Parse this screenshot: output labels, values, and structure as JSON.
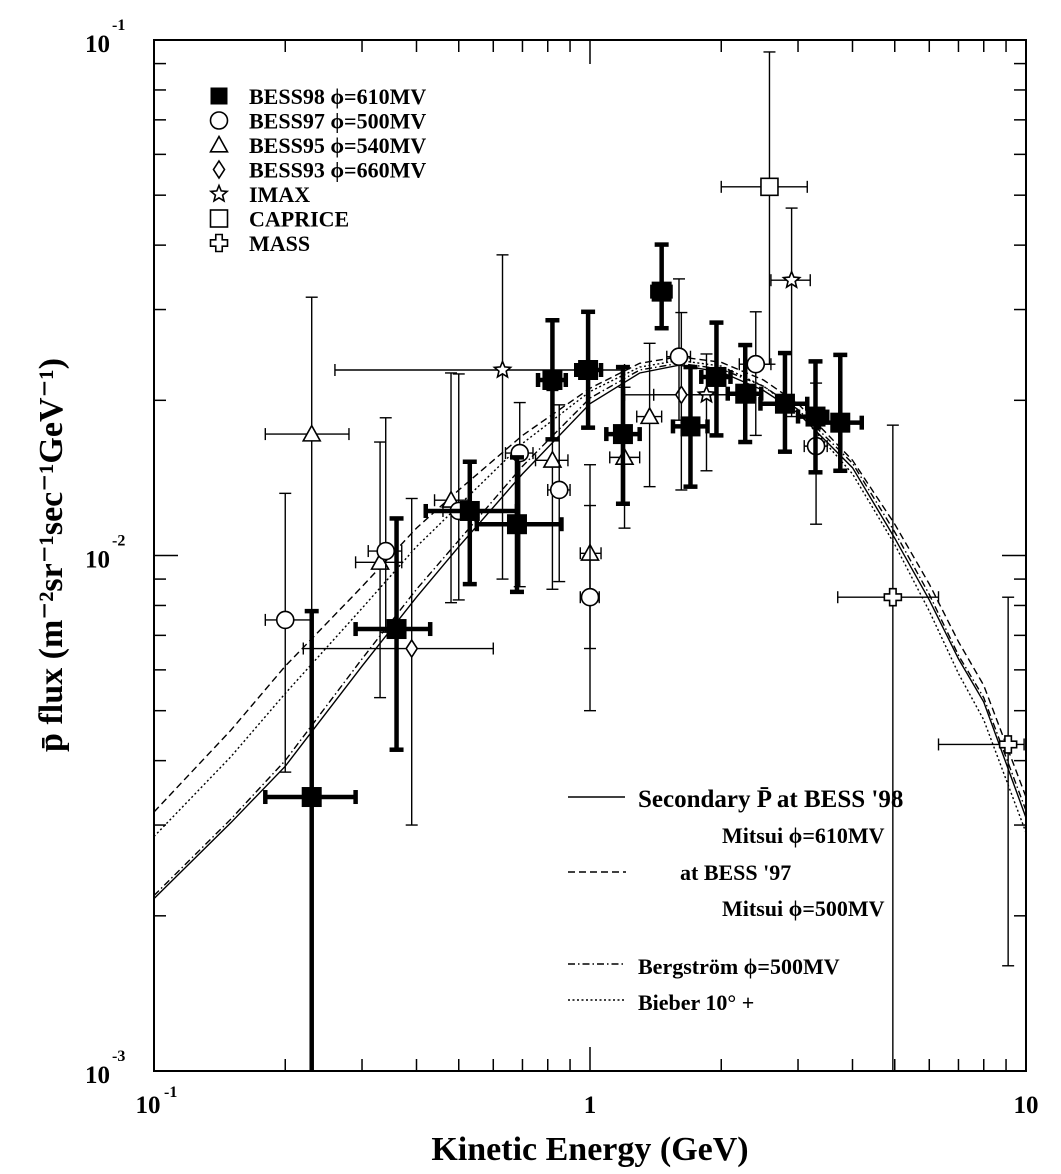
{
  "chart_data": {
    "type": "scatter",
    "xlabel": "Kinetic Energy (GeV)",
    "ylabel": "p̄ flux (m⁻²sr⁻¹sec⁻¹GeV⁻¹)",
    "xscale": "log",
    "yscale": "log",
    "xlim": [
      0.1,
      10
    ],
    "ylim": [
      0.001,
      0.1
    ],
    "x_ticks": [
      {
        "value": 0.1,
        "base": "10",
        "exp": "-1"
      },
      {
        "value": 1,
        "base": "1",
        "exp": ""
      },
      {
        "value": 10,
        "base": "10",
        "exp": ""
      }
    ],
    "y_ticks": [
      {
        "value": 0.1,
        "base": "10",
        "exp": "-1"
      },
      {
        "value": 0.01,
        "base": "10",
        "exp": "-2"
      },
      {
        "value": 0.001,
        "base": "10",
        "exp": "-3"
      }
    ],
    "grid": false,
    "legend_position": "top-left",
    "series": [
      {
        "name": "BESS98 ϕ=610MV",
        "marker": "filled-square",
        "thick": true,
        "points": [
          {
            "x": 0.23,
            "y": 0.0034,
            "xlo": 0.18,
            "xhi": 0.29,
            "ylo": 0.001,
            "yhi": 0.0078
          },
          {
            "x": 0.36,
            "y": 0.0072,
            "xlo": 0.29,
            "xhi": 0.43,
            "ylo": 0.0042,
            "yhi": 0.0118
          },
          {
            "x": 0.53,
            "y": 0.0122,
            "xlo": 0.42,
            "xhi": 0.68,
            "ylo": 0.0088,
            "yhi": 0.0152
          },
          {
            "x": 0.68,
            "y": 0.0115,
            "xlo": 0.55,
            "xhi": 0.86,
            "ylo": 0.0085,
            "yhi": 0.0155
          },
          {
            "x": 0.82,
            "y": 0.0219,
            "xlo": 0.76,
            "xhi": 0.88,
            "ylo": 0.0168,
            "yhi": 0.0286
          },
          {
            "x": 0.99,
            "y": 0.0229,
            "xlo": 0.93,
            "xhi": 1.06,
            "ylo": 0.0177,
            "yhi": 0.0297
          },
          {
            "x": 1.19,
            "y": 0.0172,
            "xlo": 1.09,
            "xhi": 1.3,
            "ylo": 0.0126,
            "yhi": 0.0232
          },
          {
            "x": 1.46,
            "y": 0.0325,
            "xlo": 1.39,
            "xhi": 1.53,
            "ylo": 0.0276,
            "yhi": 0.0401
          },
          {
            "x": 1.7,
            "y": 0.0178,
            "xlo": 1.55,
            "xhi": 1.86,
            "ylo": 0.0136,
            "yhi": 0.0232
          },
          {
            "x": 1.95,
            "y": 0.0222,
            "xlo": 1.8,
            "xhi": 2.1,
            "ylo": 0.0171,
            "yhi": 0.0283
          },
          {
            "x": 2.27,
            "y": 0.0206,
            "xlo": 2.07,
            "xhi": 2.47,
            "ylo": 0.0166,
            "yhi": 0.0256
          },
          {
            "x": 2.8,
            "y": 0.0197,
            "xlo": 2.46,
            "xhi": 3.15,
            "ylo": 0.0159,
            "yhi": 0.0247
          },
          {
            "x": 3.29,
            "y": 0.0186,
            "xlo": 3.0,
            "xhi": 3.5,
            "ylo": 0.0145,
            "yhi": 0.0238
          },
          {
            "x": 3.75,
            "y": 0.0181,
            "xlo": 3.35,
            "xhi": 4.2,
            "ylo": 0.0146,
            "yhi": 0.0245
          }
        ]
      },
      {
        "name": "BESS97 ϕ=500MV",
        "marker": "open-circle",
        "points": [
          {
            "x": 0.2,
            "y": 0.0075,
            "xlo": 0.18,
            "xhi": 0.23,
            "ylo": 0.0038,
            "yhi": 0.0132
          },
          {
            "x": 0.34,
            "y": 0.0102,
            "xlo": 0.31,
            "xhi": 0.37,
            "ylo": 0.0071,
            "yhi": 0.0185
          },
          {
            "x": 0.5,
            "y": 0.0122,
            "xlo": 0.46,
            "xhi": 0.54,
            "ylo": 0.0082,
            "yhi": 0.0225
          },
          {
            "x": 0.69,
            "y": 0.0158,
            "xlo": 0.64,
            "xhi": 0.74,
            "ylo": 0.0087,
            "yhi": 0.0198
          },
          {
            "x": 0.85,
            "y": 0.0134,
            "xlo": 0.8,
            "xhi": 0.9,
            "ylo": 0.0089,
            "yhi": 0.0196
          },
          {
            "x": 1.0,
            "y": 0.0083,
            "xlo": 0.95,
            "xhi": 1.05,
            "ylo": 0.005,
            "yhi": 0.0125
          },
          {
            "x": 1.6,
            "y": 0.0243,
            "xlo": 1.5,
            "xhi": 1.7,
            "ylo": 0.0183,
            "yhi": 0.0344
          },
          {
            "x": 2.4,
            "y": 0.0235,
            "xlo": 2.2,
            "xhi": 2.6,
            "ylo": 0.0171,
            "yhi": 0.0297
          },
          {
            "x": 3.3,
            "y": 0.0163,
            "xlo": 3.1,
            "xhi": 3.5,
            "ylo": 0.0115,
            "yhi": 0.0216
          }
        ]
      },
      {
        "name": "BESS95 ϕ=540MV",
        "marker": "open-triangle",
        "points": [
          {
            "x": 0.23,
            "y": 0.0172,
            "xlo": 0.18,
            "xhi": 0.28,
            "ylo": 0.0034,
            "yhi": 0.0317
          },
          {
            "x": 0.33,
            "y": 0.0097,
            "xlo": 0.29,
            "xhi": 0.37,
            "ylo": 0.0053,
            "yhi": 0.0166
          },
          {
            "x": 0.48,
            "y": 0.0128,
            "xlo": 0.44,
            "xhi": 0.53,
            "ylo": 0.0081,
            "yhi": 0.0226
          },
          {
            "x": 0.82,
            "y": 0.0153,
            "xlo": 0.75,
            "xhi": 0.89,
            "ylo": 0.0086,
            "yhi": 0.0209
          },
          {
            "x": 1.0,
            "y": 0.0101,
            "xlo": 0.95,
            "xhi": 1.06,
            "ylo": 0.0066,
            "yhi": 0.015
          },
          {
            "x": 1.2,
            "y": 0.0155,
            "xlo": 1.11,
            "xhi": 1.3,
            "ylo": 0.0113,
            "yhi": 0.0212
          },
          {
            "x": 1.37,
            "y": 0.0186,
            "xlo": 1.28,
            "xhi": 1.46,
            "ylo": 0.0136,
            "yhi": 0.0258
          }
        ]
      },
      {
        "name": "BESS93 ϕ=660MV",
        "marker": "open-diamond",
        "points": [
          {
            "x": 0.39,
            "y": 0.0066,
            "xlo": 0.22,
            "xhi": 0.6,
            "ylo": 0.003,
            "yhi": 0.0129
          },
          {
            "x": 1.62,
            "y": 0.0205,
            "xlo": 1.2,
            "xhi": 2.3,
            "ylo": 0.0134,
            "yhi": 0.0296
          }
        ]
      },
      {
        "name": "IMAX",
        "marker": "open-star",
        "points": [
          {
            "x": 0.63,
            "y": 0.0229,
            "xlo": 0.26,
            "xhi": 1.2,
            "ylo": 0.009,
            "yhi": 0.0383
          },
          {
            "x": 1.85,
            "y": 0.0205,
            "xlo": 1.4,
            "xhi": 2.4,
            "ylo": 0.0146,
            "yhi": 0.0246
          },
          {
            "x": 2.9,
            "y": 0.0342,
            "xlo": 2.6,
            "xhi": 3.2,
            "ylo": 0.0186,
            "yhi": 0.0472
          }
        ]
      },
      {
        "name": "CAPRICE",
        "marker": "open-square",
        "points": [
          {
            "x": 2.58,
            "y": 0.0519,
            "xlo": 2.0,
            "xhi": 3.15,
            "ylo": 0.0235,
            "yhi": 0.0948
          }
        ]
      },
      {
        "name": "MASS",
        "marker": "open-cross",
        "points": [
          {
            "x": 4.95,
            "y": 0.0083,
            "xlo": 3.7,
            "xhi": 6.3,
            "ylo": 0.001,
            "yhi": 0.0179
          },
          {
            "x": 9.1,
            "y": 0.0043,
            "xlo": 6.3,
            "xhi": 9.9,
            "ylo": 0.0016,
            "yhi": 0.0083
          }
        ]
      }
    ],
    "curves": [
      {
        "name": "Secondary P̄ at BESS '98 Mitsui ϕ=610MV",
        "style": "solid",
        "x": [
          0.1,
          0.15,
          0.2,
          0.3,
          0.4,
          0.5,
          0.7,
          1.0,
          1.3,
          1.6,
          2.0,
          2.5,
          3.0,
          4.0,
          5.0,
          6.0,
          7.0,
          8.0,
          10.0
        ],
        "y": [
          0.00216,
          0.00303,
          0.0039,
          0.0061,
          0.0083,
          0.0104,
          0.0144,
          0.0197,
          0.0226,
          0.0234,
          0.0227,
          0.0209,
          0.0189,
          0.0148,
          0.0108,
          0.0082,
          0.0063,
          0.0052,
          0.0031
        ]
      },
      {
        "name": "at BESS '97 Mitsui ϕ=500MV",
        "style": "dashed",
        "x": [
          0.1,
          0.15,
          0.2,
          0.3,
          0.4,
          0.5,
          0.7,
          1.0,
          1.3,
          1.6,
          2.0,
          2.5,
          3.0,
          4.0,
          5.0,
          6.0,
          7.0,
          8.0,
          10.0
        ],
        "y": [
          0.00318,
          0.00458,
          0.0061,
          0.0087,
          0.0113,
          0.0134,
          0.0171,
          0.0211,
          0.0236,
          0.0243,
          0.0237,
          0.0219,
          0.0197,
          0.0153,
          0.0115,
          0.0088,
          0.0068,
          0.0056,
          0.0034
        ]
      },
      {
        "name": "Bergström ϕ=500MV",
        "style": "dash-dot",
        "x": [
          0.1,
          0.15,
          0.2,
          0.3,
          0.4,
          0.5,
          0.7,
          1.0,
          1.3,
          1.6,
          2.0,
          2.5,
          3.0,
          4.0,
          5.0,
          6.0,
          7.0,
          8.0,
          10.0
        ],
        "y": [
          0.00219,
          0.00308,
          0.004,
          0.0063,
          0.0086,
          0.0107,
          0.0149,
          0.0202,
          0.0229,
          0.0236,
          0.023,
          0.0213,
          0.0192,
          0.0151,
          0.0111,
          0.0084,
          0.0064,
          0.0053,
          0.0032
        ]
      },
      {
        "name": "Bieber 10° +",
        "style": "dotted",
        "x": [
          0.1,
          0.15,
          0.2,
          0.3,
          0.4,
          0.5,
          0.7,
          1.0,
          1.3,
          1.6,
          2.0,
          2.5,
          3.0,
          4.0,
          5.0,
          6.0,
          7.0,
          8.0,
          10.0
        ],
        "y": [
          0.00285,
          0.00407,
          0.0054,
          0.0079,
          0.0104,
          0.0125,
          0.0165,
          0.0208,
          0.0232,
          0.0239,
          0.0233,
          0.0213,
          0.019,
          0.0144,
          0.0105,
          0.0078,
          0.0059,
          0.0048,
          0.0029
        ]
      }
    ],
    "legend": [
      {
        "marker": "filled-square",
        "label": "BESS98",
        "phi": "ϕ=610MV"
      },
      {
        "marker": "open-circle",
        "label": "BESS97",
        "phi": "ϕ=500MV"
      },
      {
        "marker": "open-triangle",
        "label": "BESS95",
        "phi": "ϕ=540MV"
      },
      {
        "marker": "open-diamond",
        "label": "BESS93",
        "phi": "ϕ=660MV"
      },
      {
        "marker": "open-star",
        "label": "IMAX",
        "phi": ""
      },
      {
        "marker": "open-square",
        "label": "CAPRICE",
        "phi": ""
      },
      {
        "marker": "open-cross",
        "label": "MASS",
        "phi": ""
      }
    ],
    "model_legend": [
      {
        "style": "solid",
        "text": "Secondary P̄ at BESS '98",
        "sub": "Mitsui     ϕ=610MV"
      },
      {
        "style": "dashed",
        "text": "at BESS '97",
        "sub": "Mitsui     ϕ=500MV"
      },
      {
        "style": "dash-dot",
        "text": "Bergström     ϕ=500MV",
        "sub": ""
      },
      {
        "style": "dotted",
        "text": "Bieber           10° +",
        "sub": ""
      }
    ]
  }
}
